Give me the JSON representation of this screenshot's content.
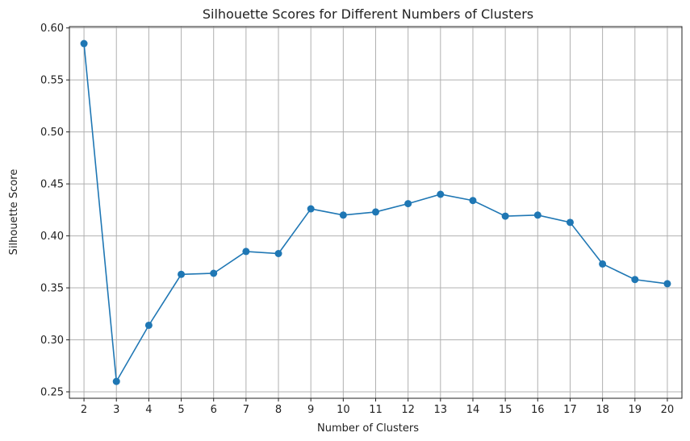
{
  "chart_data": {
    "type": "line",
    "title": "Silhouette Scores for Different Numbers of Clusters",
    "xlabel": "Number of Clusters",
    "ylabel": "Silhouette Score",
    "x": [
      2,
      3,
      4,
      5,
      6,
      7,
      8,
      9,
      10,
      11,
      12,
      13,
      14,
      15,
      16,
      17,
      18,
      19,
      20
    ],
    "series": [
      {
        "values": [
          0.585,
          0.26,
          0.314,
          0.363,
          0.364,
          0.385,
          0.383,
          0.426,
          0.42,
          0.423,
          0.431,
          0.44,
          0.434,
          0.419,
          0.42,
          0.413,
          0.373,
          0.358,
          0.354
        ],
        "color": "#1f77b4",
        "marker": "circle"
      }
    ],
    "x_ticks": [
      "2",
      "3",
      "4",
      "5",
      "6",
      "7",
      "8",
      "9",
      "10",
      "11",
      "12",
      "13",
      "14",
      "15",
      "16",
      "17",
      "18",
      "19",
      "20"
    ],
    "y_ticks": [
      "0.25",
      "0.30",
      "0.35",
      "0.40",
      "0.45",
      "0.50",
      "0.55",
      "0.60"
    ],
    "xlim": [
      1.55,
      20.45
    ],
    "ylim": [
      0.2438,
      0.6013
    ],
    "grid": true
  }
}
